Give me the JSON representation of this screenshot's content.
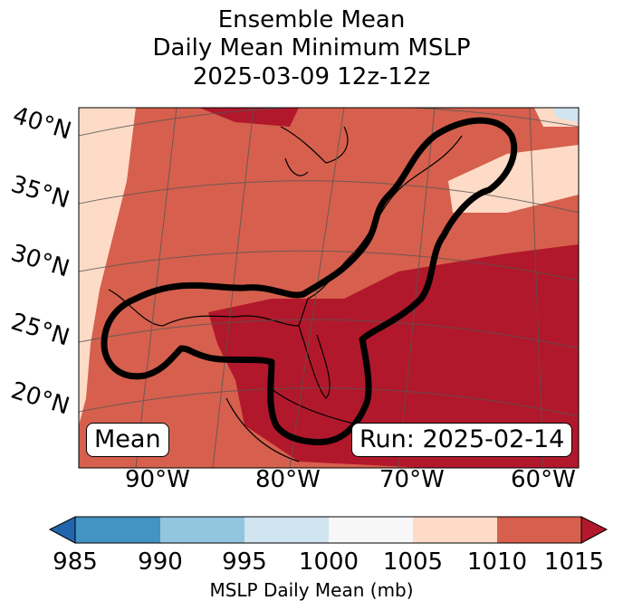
{
  "title": {
    "line1": "Ensemble Mean",
    "line2": "Daily Mean Minimum MSLP",
    "line3": "2025-03-09 12z-12z"
  },
  "lat_labels": [
    "40°N",
    "35°N",
    "30°N",
    "25°N",
    "20°N"
  ],
  "lon_labels": [
    "90°W",
    "80°W",
    "70°W",
    "60°W"
  ],
  "mean_box": "Mean",
  "run_box": "Run: 2025-02-14",
  "colorbar": {
    "ticks": [
      "985",
      "990",
      "995",
      "1000",
      "1005",
      "1010",
      "1015"
    ],
    "label": "MSLP Daily Mean (mb)",
    "colors": [
      "#2166ac",
      "#4393c3",
      "#92c5de",
      "#d1e5f0",
      "#f7f7f7",
      "#fddbc7",
      "#d6604d",
      "#b2182b"
    ]
  }
}
